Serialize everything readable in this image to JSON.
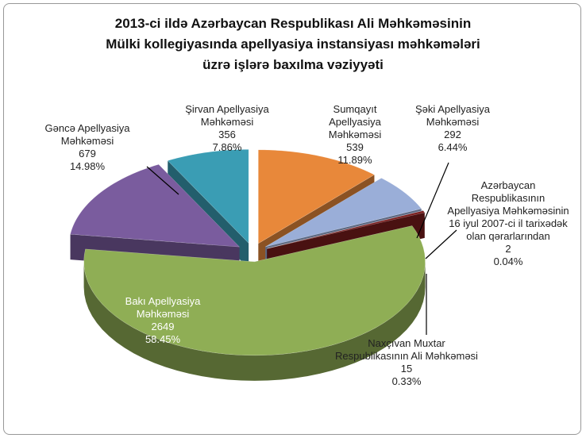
{
  "chart_data": {
    "type": "pie",
    "title": [
      "2013-ci ildə Azərbaycan Respublikası Ali Məhkəməsinin",
      "Mülki kollegiyasında apellyasiya instansiyası məhkəmələri",
      "üzrə işlərə baxılma vəziyyəti"
    ],
    "categories": [
      "Sumqayıt Apellyasiya Məhkəməsi",
      "Şəki Apellyasiya Məhkəməsi",
      "Azərbaycan Respublikasının Apellyasiya Məhkəməsinin 16 iyul 2007-ci il tarixədək olan qərarlarından",
      "Naxçıvan Muxtar Respublikasının Ali Məhkəməsi",
      "Bakı Apellyasiya Məhkəməsi",
      "Gəncə Apellyasiya Məhkəməsi",
      "Şirvan Apellyasiya Məhkəməsi"
    ],
    "values": [
      539,
      292,
      2,
      15,
      2649,
      679,
      356
    ],
    "percent_labels": [
      "11.89%",
      "6.44%",
      "0.04%",
      "0.33%",
      "58.45%",
      "14.98%",
      "7.86%"
    ],
    "colors": [
      "#e8883a",
      "#9aaed8",
      "#3d5282",
      "#7a1c1c",
      "#8fae55",
      "#7a5c9e",
      "#3a9db4"
    ]
  }
}
